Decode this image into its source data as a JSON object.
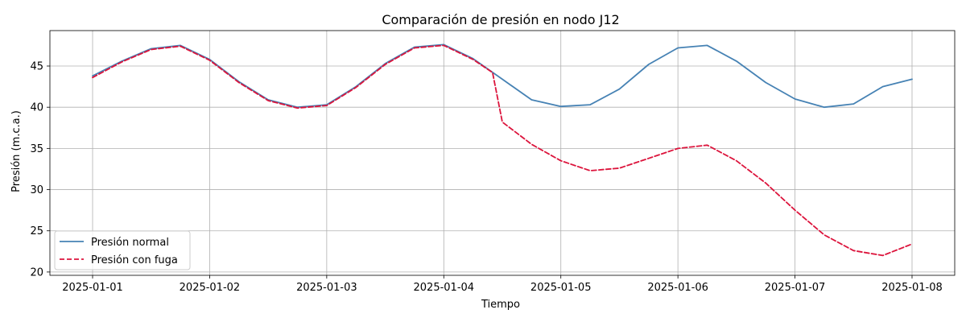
{
  "chart_data": {
    "type": "line",
    "title": "Comparación de presión en nodo J12",
    "xlabel": "Tiempo",
    "ylabel": "Presión (m.c.a.)",
    "x_start": "2025-01-01",
    "x_ticks": [
      "2025-01-01",
      "2025-01-02",
      "2025-01-03",
      "2025-01-04",
      "2025-01-05",
      "2025-01-06",
      "2025-01-07",
      "2025-01-08"
    ],
    "xlim": [
      "2024-12-31T15:15",
      "2025-01-08T08:45"
    ],
    "y_ticks": [
      20,
      25,
      30,
      35,
      40,
      45
    ],
    "ylim": [
      19.6,
      49.3
    ],
    "grid": true,
    "legend_position": "lower-left",
    "series": [
      {
        "name": "Presión normal",
        "color": "#4682b4",
        "style": "solid",
        "x": [
          "2025-01-01T00:00",
          "2025-01-01T06:00",
          "2025-01-01T12:00",
          "2025-01-01T18:00",
          "2025-01-02T00:00",
          "2025-01-02T06:00",
          "2025-01-02T12:00",
          "2025-01-02T18:00",
          "2025-01-03T00:00",
          "2025-01-03T06:00",
          "2025-01-03T12:00",
          "2025-01-03T18:00",
          "2025-01-04T00:00",
          "2025-01-04T06:00",
          "2025-01-04T12:00",
          "2025-01-04T18:00",
          "2025-01-05T00:00",
          "2025-01-05T06:00",
          "2025-01-05T12:00",
          "2025-01-05T18:00",
          "2025-01-06T00:00",
          "2025-01-06T06:00",
          "2025-01-06T12:00",
          "2025-01-06T18:00",
          "2025-01-07T00:00",
          "2025-01-07T06:00",
          "2025-01-07T12:00",
          "2025-01-07T18:00",
          "2025-01-08T00:00"
        ],
        "values": [
          43.8,
          45.6,
          47.1,
          47.5,
          45.8,
          43.1,
          40.9,
          40.0,
          40.3,
          42.5,
          45.3,
          47.3,
          47.6,
          45.9,
          43.4,
          40.9,
          40.1,
          40.3,
          42.2,
          45.2,
          47.2,
          47.5,
          45.6,
          43.0,
          41.0,
          40.0,
          40.4,
          42.5,
          43.4
        ]
      },
      {
        "name": "Presión con fuga",
        "color": "#dc143c",
        "style": "dashed",
        "x": [
          "2025-01-01T00:00",
          "2025-01-01T06:00",
          "2025-01-01T12:00",
          "2025-01-01T18:00",
          "2025-01-02T00:00",
          "2025-01-02T06:00",
          "2025-01-02T12:00",
          "2025-01-02T18:00",
          "2025-01-03T00:00",
          "2025-01-03T06:00",
          "2025-01-03T12:00",
          "2025-01-03T18:00",
          "2025-01-04T00:00",
          "2025-01-04T06:00",
          "2025-01-04T10:00",
          "2025-01-04T12:00",
          "2025-01-04T18:00",
          "2025-01-05T00:00",
          "2025-01-05T06:00",
          "2025-01-05T12:00",
          "2025-01-05T18:00",
          "2025-01-06T00:00",
          "2025-01-06T06:00",
          "2025-01-06T12:00",
          "2025-01-06T18:00",
          "2025-01-07T00:00",
          "2025-01-07T06:00",
          "2025-01-07T12:00",
          "2025-01-07T18:00",
          "2025-01-08T00:00"
        ],
        "values": [
          43.6,
          45.5,
          47.0,
          47.4,
          45.7,
          43.0,
          40.8,
          39.9,
          40.2,
          42.4,
          45.2,
          47.2,
          47.5,
          45.8,
          44.2,
          38.2,
          35.5,
          33.5,
          32.3,
          32.6,
          33.8,
          35.0,
          35.4,
          33.5,
          30.8,
          27.5,
          24.5,
          22.6,
          22.0,
          23.4
        ]
      }
    ]
  }
}
